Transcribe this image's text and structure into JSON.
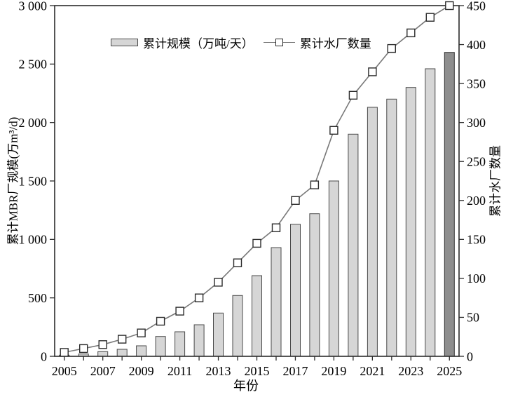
{
  "chart_data": {
    "type": "bar",
    "combo": "bar+line, dual y-axes",
    "x": [
      "2005",
      "2006",
      "2007",
      "2008",
      "2009",
      "2010",
      "2011",
      "2012",
      "2013",
      "2014",
      "2015",
      "2016",
      "2017",
      "2018",
      "2019",
      "2020",
      "2021",
      "2022",
      "2023",
      "2024",
      "2025"
    ],
    "x_axis": {
      "label": "年份",
      "labeled_ticks": [
        "2005",
        "2007",
        "2009",
        "2011",
        "2013",
        "2015",
        "2017",
        "2019",
        "2021",
        "2023",
        "2025"
      ]
    },
    "left_axis": {
      "label": "累计MBR厂规模(万m³/d)",
      "min": 0,
      "max": 3000,
      "step": 500,
      "tick_values": [
        0,
        500,
        1000,
        1500,
        2000,
        2500,
        3000
      ],
      "tick_labels": [
        "0",
        "500",
        "1 000",
        "1 500",
        "2 000",
        "2 500",
        "3 000"
      ]
    },
    "right_axis": {
      "label": "累计水厂数量",
      "min": 0,
      "max": 450,
      "step": 50,
      "tick_values": [
        0,
        50,
        100,
        150,
        200,
        250,
        300,
        350,
        400,
        450
      ],
      "tick_labels": [
        "0",
        "50",
        "100",
        "150",
        "200",
        "250",
        "300",
        "350",
        "400",
        "450"
      ]
    },
    "series": [
      {
        "name": "累计规模（万吨/天）",
        "type": "bar",
        "axis": "left",
        "values": [
          10,
          20,
          40,
          60,
          90,
          170,
          210,
          270,
          370,
          520,
          690,
          930,
          1130,
          1220,
          1500,
          1900,
          2130,
          2200,
          2300,
          2460,
          2600
        ],
        "bar_color": "#d6d6d6",
        "bar_border": "#4a4a4a",
        "last_bar_color": "#8e8e8e",
        "last_bar_border": "#333333"
      },
      {
        "name": "累计水厂数量",
        "type": "line",
        "axis": "right",
        "values": [
          5,
          10,
          15,
          22,
          30,
          45,
          58,
          75,
          95,
          120,
          145,
          165,
          200,
          220,
          290,
          335,
          365,
          395,
          415,
          435,
          450
        ],
        "line_color": "#787878",
        "marker": "open-square",
        "marker_fill": "#ffffff",
        "marker_border": "#2b2b2b"
      }
    ],
    "legend_position": "inside-top-center",
    "grid": false,
    "frame": "full box",
    "frame_color": "#2b2b2b",
    "background": "#ffffff"
  },
  "legend": {
    "bar_label": "累计规模（万吨/天）",
    "line_label": "累计水厂数量"
  },
  "axes_titles": {
    "left": "累计MBR厂规模(万m³/d)",
    "right": "累计水厂数量",
    "bottom": "年份"
  }
}
